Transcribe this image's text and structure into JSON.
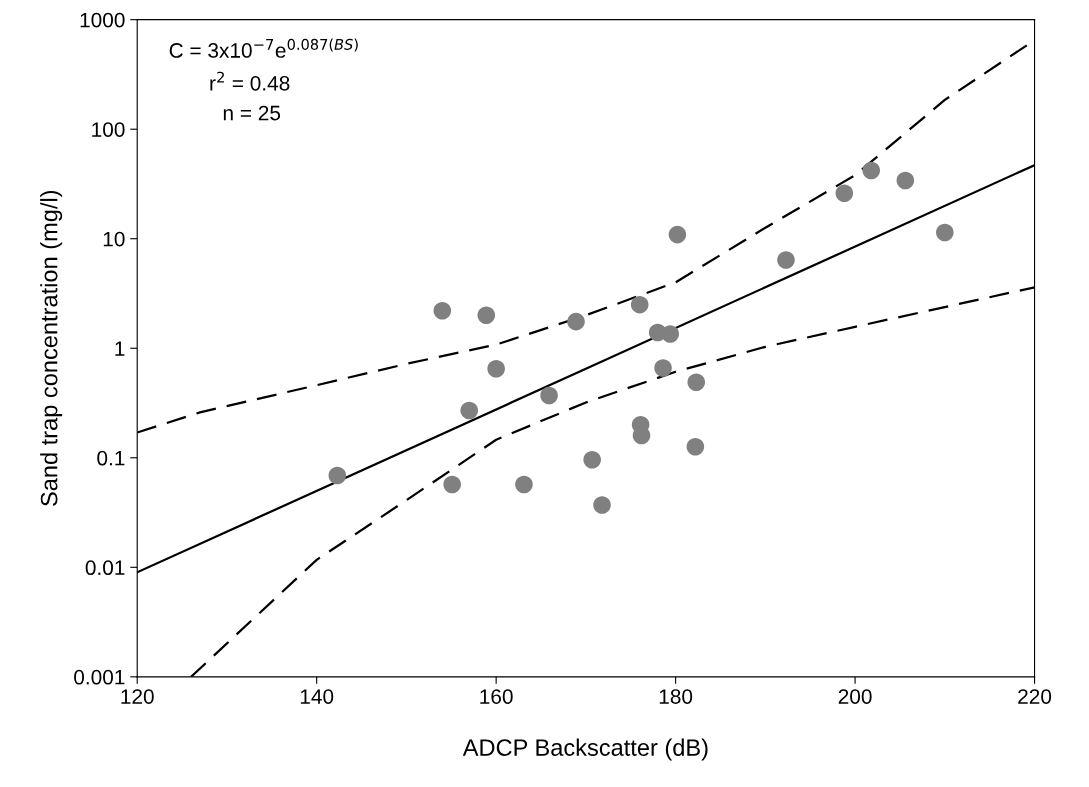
{
  "chart_data": {
    "type": "scatter",
    "xlabel": "ADCP Backscatter (dB)",
    "ylabel": "Sand trap concentration (mg/l)",
    "log": "y",
    "xlim": [
      120,
      220
    ],
    "xticks": [
      120,
      140,
      160,
      180,
      200,
      220
    ],
    "ylim": [
      0.001,
      1000
    ],
    "yticks": [
      0.001,
      0.01,
      0.1,
      1,
      10,
      100,
      1000
    ],
    "grid": false,
    "marker": "circle",
    "annotations": [
      "C = 3x10$^{−7}$e$^{0.087(BS)}$",
      "r$^{2}$ = 0.48",
      "n = 25"
    ],
    "series": [
      {
        "color": "#808080",
        "x": [
          142.3,
          154.0,
          155.1,
          157.0,
          158.9,
          160.0,
          163.1,
          165.9,
          168.9,
          170.7,
          171.8,
          176.0,
          176.1,
          176.2,
          178.0,
          179.4,
          178.6,
          182.2,
          182.3,
          180.2,
          192.3,
          198.8,
          201.8,
          205.6,
          210.0
        ],
        "values": [
          0.069,
          2.2,
          0.057,
          0.27,
          2.0,
          0.65,
          0.057,
          0.37,
          1.75,
          0.096,
          0.037,
          2.5,
          0.2,
          0.16,
          1.39,
          1.35,
          0.66,
          0.126,
          0.49,
          10.9,
          6.4,
          26,
          42,
          34,
          11.4
        ]
      },
      {
        "type": "line",
        "color": "#000000",
        "line_style": "solid",
        "marker": "none",
        "x": [
          120,
          170,
          220
        ],
        "values": [
          0.009,
          0.65,
          47
        ]
      },
      {
        "type": "line",
        "color": "#000000",
        "line_style": "dashed",
        "marker": "none",
        "x": [
          120,
          127,
          140,
          150,
          160,
          170,
          180,
          190,
          200,
          210,
          220
        ],
        "values": [
          0.17,
          0.26,
          0.46,
          0.72,
          1.08,
          2.0,
          4.0,
          12.6,
          38,
          185,
          650
        ]
      },
      {
        "type": "line",
        "color": "#000000",
        "line_style": "dashed",
        "marker": "none",
        "x": [
          126,
          140,
          150,
          160,
          170,
          180,
          190,
          200,
          220
        ],
        "values": [
          0.001,
          0.0117,
          0.041,
          0.146,
          0.32,
          0.61,
          1.03,
          1.57,
          3.6
        ]
      }
    ]
  }
}
